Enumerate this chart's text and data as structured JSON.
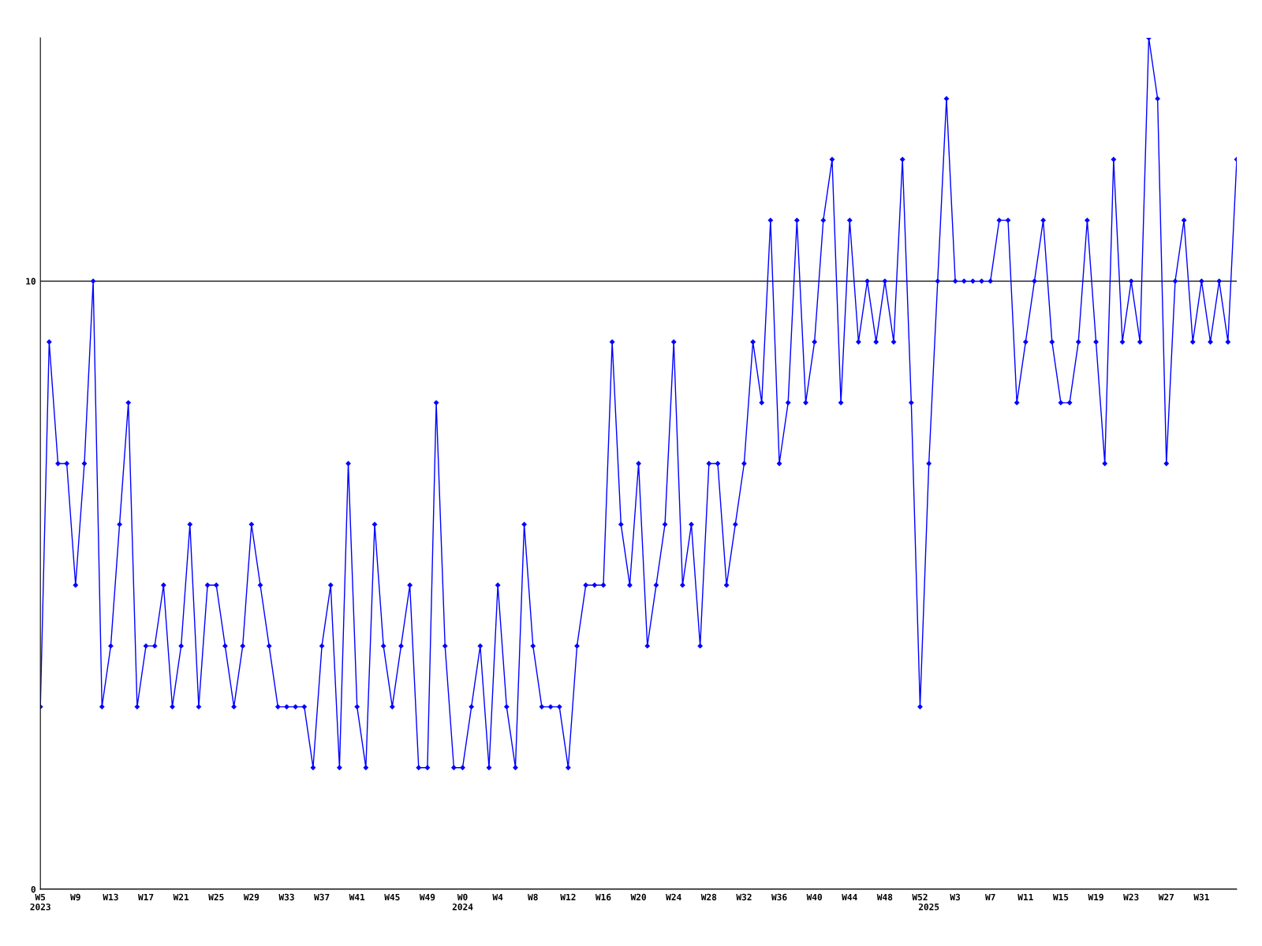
{
  "chart_data": {
    "type": "line",
    "categories": [
      "W5\n2023",
      null,
      null,
      null,
      "W9",
      null,
      null,
      null,
      "W13",
      null,
      null,
      null,
      "W17",
      null,
      null,
      null,
      "W21",
      null,
      null,
      null,
      "W25",
      null,
      null,
      null,
      "W29",
      null,
      null,
      null,
      "W33",
      null,
      null,
      null,
      "W37",
      null,
      null,
      null,
      "W41",
      null,
      null,
      null,
      "W45",
      null,
      null,
      null,
      "W49",
      null,
      null,
      null,
      "W0\n2024",
      null,
      null,
      null,
      "W4",
      null,
      null,
      null,
      "W8",
      null,
      null,
      null,
      "W12",
      null,
      null,
      null,
      "W16",
      null,
      null,
      null,
      "W20",
      null,
      null,
      null,
      "W24",
      null,
      null,
      null,
      "W28",
      null,
      null,
      null,
      "W32",
      null,
      null,
      null,
      "W36",
      null,
      null,
      null,
      "W40",
      null,
      null,
      null,
      "W44",
      null,
      null,
      null,
      "W48",
      null,
      null,
      null,
      "W52",
      "\n2025",
      null,
      null,
      "W3",
      null,
      null,
      null,
      "W7",
      null,
      null,
      null,
      "W11",
      null,
      null,
      null,
      "W15",
      null,
      null,
      null,
      "W19",
      null,
      null,
      null,
      "W23",
      null,
      null,
      null,
      "W27",
      null,
      null,
      null,
      "W31",
      null,
      null,
      null,
      null
    ],
    "series": [
      {
        "color": "#0000ff",
        "values": [
          3,
          9,
          7,
          7,
          5,
          7,
          10,
          3,
          4,
          6,
          8,
          3,
          4,
          4,
          5,
          3,
          4,
          6,
          3,
          5,
          5,
          4,
          3,
          4,
          6,
          5,
          4,
          3,
          3,
          3,
          3,
          2,
          4,
          5,
          2,
          7,
          3,
          2,
          6,
          4,
          3,
          4,
          5,
          2,
          2,
          8,
          4,
          2,
          2,
          3,
          4,
          2,
          5,
          3,
          2,
          6,
          4,
          3,
          3,
          3,
          2,
          4,
          5,
          5,
          5,
          9,
          6,
          5,
          7,
          4,
          5,
          6,
          9,
          5,
          6,
          4,
          7,
          7,
          5,
          6,
          7,
          9,
          8,
          11,
          7,
          8,
          11,
          8,
          9,
          11,
          12,
          8,
          11,
          9,
          10,
          9,
          10,
          9,
          12,
          8,
          3,
          7,
          10,
          13,
          10,
          10,
          10,
          10,
          10,
          11,
          11,
          8,
          9,
          10,
          11,
          9,
          8,
          8,
          9,
          11,
          9,
          7,
          12,
          9,
          10,
          9,
          14,
          13,
          7,
          10,
          11,
          9,
          10,
          9,
          10,
          9,
          12
        ]
      }
    ],
    "ylim": [
      0,
      14
    ],
    "yticks": [
      0,
      10
    ],
    "grid": "y",
    "marker": "diamond",
    "line_style": "solid",
    "legend": false
  }
}
